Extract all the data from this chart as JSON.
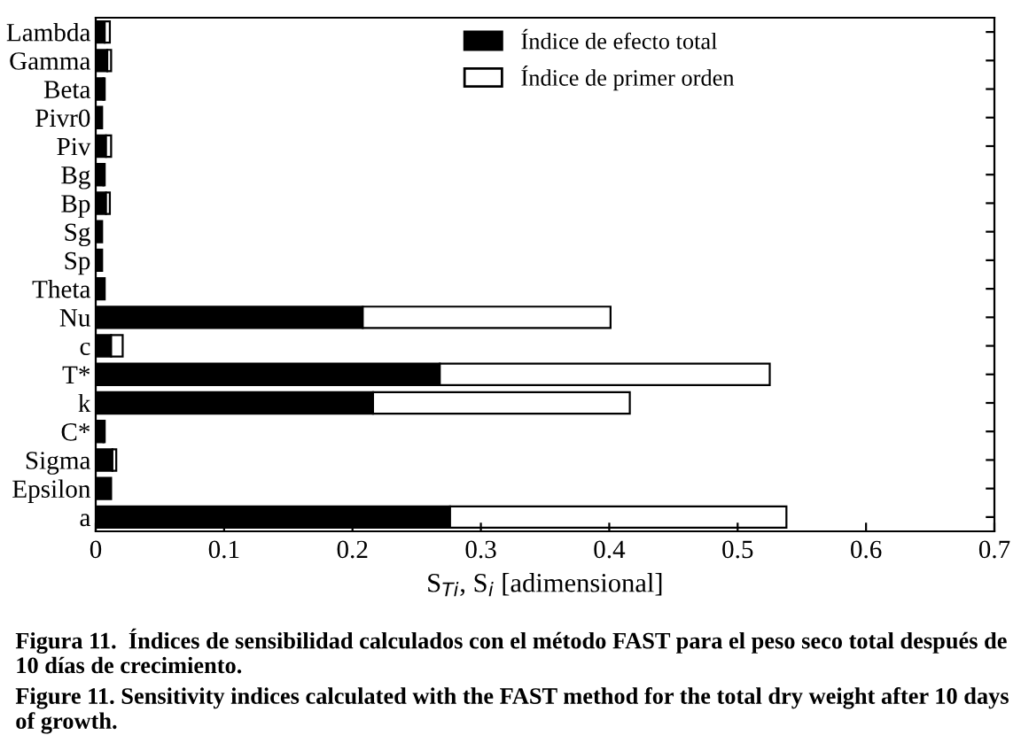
{
  "chart_data": {
    "type": "bar",
    "orientation": "horizontal",
    "stacked": true,
    "categories": [
      "Lambda",
      "Gamma",
      "Beta",
      "Pivr0",
      "Piv",
      "Bg",
      "Bp",
      "Sg",
      "Sp",
      "Theta",
      "Nu",
      "c",
      "T*",
      "k",
      "C*",
      "Sigma",
      "Epsilon",
      "a"
    ],
    "series": [
      {
        "name": "Índice de efecto total",
        "color": "#000000",
        "values": [
          0.007,
          0.009,
          0.006,
          0.005,
          0.008,
          0.006,
          0.008,
          0.005,
          0.005,
          0.007,
          0.208,
          0.012,
          0.268,
          0.216,
          0.006,
          0.013,
          0.012,
          0.276
        ]
      },
      {
        "name": "Índice de primer orden",
        "color": "#ffffff",
        "values": [
          0.004,
          0.003,
          0.001,
          null,
          0.004,
          0.001,
          0.003,
          null,
          null,
          null,
          0.193,
          0.009,
          0.257,
          0.2,
          0.001,
          0.003,
          null,
          0.262
        ]
      }
    ],
    "xlim": [
      0,
      0.7
    ],
    "xticks": [
      0,
      0.1,
      0.2,
      0.3,
      0.4,
      0.5,
      0.6,
      0.7
    ],
    "xlabel": "S$_{Ti}$, S$_{i}$ [adimensional]",
    "legend": "top right",
    "grid": false,
    "annotations": [
      "Figura 11.  Índices de sensibilidad calculados con el método FAST para el peso seco total después de 10 días de crecimiento.",
      "Figure 11. Sensitivity indices calculated with the FAST method for the total dry weight after 10 days of growth."
    ]
  }
}
